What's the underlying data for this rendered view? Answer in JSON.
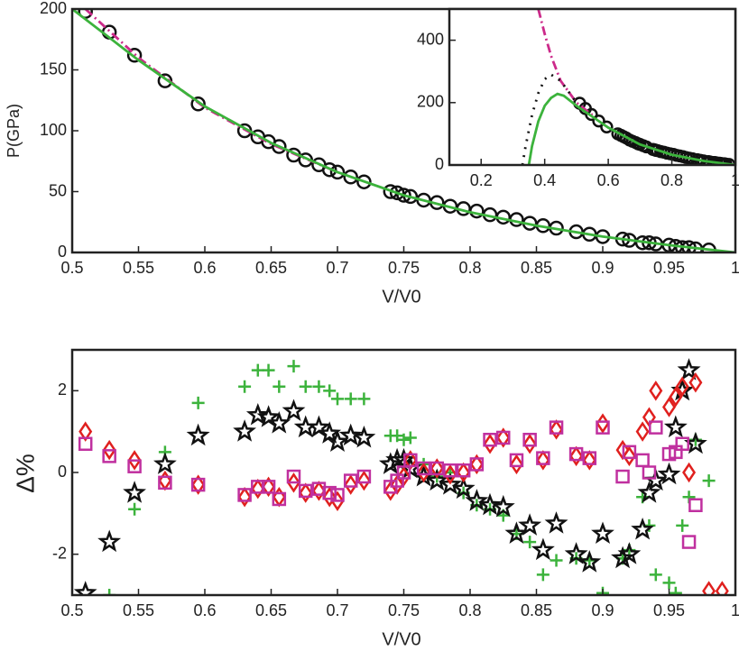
{
  "chart_data": [
    {
      "type": "line",
      "xlabel": "V/V0",
      "ylabel": "P(GPa)",
      "xlim": [
        0.5,
        1
      ],
      "ylim": [
        0,
        200
      ],
      "xticks": [
        0.5,
        0.55,
        0.6,
        0.65,
        0.7,
        0.75,
        0.8,
        0.85,
        0.9,
        0.95,
        1
      ],
      "yticks": [
        0,
        50,
        100,
        150,
        200
      ],
      "series": [
        {
          "color": "#111111",
          "marker": "o",
          "line": "none",
          "x": [
            0.51,
            0.528,
            0.547,
            0.57,
            0.595,
            0.63,
            0.64,
            0.648,
            0.656,
            0.667,
            0.676,
            0.686,
            0.694,
            0.7,
            0.71,
            0.72,
            0.74,
            0.745,
            0.75,
            0.755,
            0.765,
            0.775,
            0.785,
            0.795,
            0.805,
            0.815,
            0.825,
            0.835,
            0.845,
            0.855,
            0.865,
            0.88,
            0.89,
            0.9,
            0.915,
            0.92,
            0.93,
            0.935,
            0.94,
            0.95,
            0.955,
            0.96,
            0.965,
            0.97,
            0.98
          ],
          "values": [
            198,
            181,
            162,
            141,
            122,
            100,
            95,
            91,
            87,
            80,
            76,
            72,
            68,
            66,
            62,
            58,
            50,
            49,
            47,
            46,
            43,
            41,
            38,
            36,
            34,
            31,
            29,
            27,
            24,
            22,
            20,
            17,
            15,
            13,
            11,
            10,
            8,
            8,
            7,
            6,
            5,
            4,
            4,
            3,
            2
          ]
        },
        {
          "color": "#cc2a8a",
          "marker": "none",
          "line": "dashdot",
          "x": [
            0.51,
            0.55,
            0.6,
            0.65,
            0.7
          ],
          "values": [
            200,
            160,
            119,
            89,
            66
          ]
        },
        {
          "color": "#3cb33c",
          "marker": "none",
          "line": "solid",
          "x": [
            0.5,
            0.55,
            0.6,
            0.65,
            0.7,
            0.75,
            0.8,
            0.85,
            0.9,
            0.95,
            1
          ],
          "values": [
            200,
            158,
            120,
            90,
            66,
            47,
            33,
            22,
            13,
            6,
            0
          ]
        }
      ]
    },
    {
      "type": "line",
      "xlim": [
        0.1,
        1
      ],
      "ylim": [
        0,
        500
      ],
      "xticks": [
        0.2,
        0.4,
        0.6,
        0.8,
        1
      ],
      "yticks": [
        0,
        200,
        400
      ],
      "series": [
        {
          "color": "#cc2a8a",
          "marker": "none",
          "line": "dashdot",
          "x": [
            0.38,
            0.4,
            0.42,
            0.45,
            0.5,
            0.55
          ],
          "values": [
            500,
            420,
            350,
            270,
            200,
            160
          ]
        },
        {
          "color": "#111111",
          "marker": "none",
          "line": "dotted",
          "x": [
            0.33,
            0.34,
            0.36,
            0.38,
            0.4,
            0.42,
            0.45,
            0.5
          ],
          "values": [
            0,
            60,
            160,
            230,
            275,
            290,
            270,
            200
          ]
        },
        {
          "color": "#3cb33c",
          "marker": "none",
          "line": "solid",
          "x": [
            0.35,
            0.36,
            0.38,
            0.4,
            0.42,
            0.44,
            0.46,
            0.5,
            0.55,
            0.6,
            0.7,
            0.8,
            0.9,
            1
          ],
          "values": [
            0,
            60,
            140,
            190,
            215,
            228,
            222,
            190,
            155,
            120,
            66,
            33,
            13,
            0
          ]
        }
      ]
    },
    {
      "type": "scatter",
      "xlabel": "V/V0",
      "ylabel": "Δ%",
      "xlim": [
        0.5,
        1
      ],
      "ylim": [
        -3,
        3
      ],
      "xticks": [
        0.5,
        0.55,
        0.6,
        0.65,
        0.7,
        0.75,
        0.8,
        0.85,
        0.9,
        0.95,
        1
      ],
      "yticks": [
        -2,
        0,
        2
      ],
      "x": [
        0.51,
        0.528,
        0.547,
        0.57,
        0.595,
        0.63,
        0.64,
        0.648,
        0.656,
        0.667,
        0.676,
        0.686,
        0.694,
        0.7,
        0.71,
        0.72,
        0.74,
        0.745,
        0.75,
        0.755,
        0.765,
        0.775,
        0.785,
        0.795,
        0.805,
        0.815,
        0.825,
        0.835,
        0.845,
        0.855,
        0.865,
        0.88,
        0.89,
        0.9,
        0.915,
        0.92,
        0.93,
        0.935,
        0.94,
        0.95,
        0.955,
        0.96,
        0.965,
        0.97,
        0.98,
        0.99
      ],
      "series": [
        {
          "color": "#3cb33c",
          "marker": "+",
          "values": [
            null,
            -3.0,
            -0.9,
            0.5,
            1.7,
            2.1,
            2.5,
            2.5,
            2.1,
            2.6,
            2.1,
            2.1,
            2.0,
            1.8,
            1.8,
            1.8,
            0.9,
            0.9,
            0.8,
            0.85,
            0.2,
            -0.1,
            0.0,
            -0.5,
            -0.8,
            -0.9,
            -1.05,
            -1.5,
            -1.7,
            -2.5,
            -2.15,
            -2.1,
            -2.15,
            -2.95,
            -2.1,
            -1.9,
            -0.6,
            -1.3,
            -2.5,
            -2.7,
            -2.95,
            -1.3,
            -0.6,
            0.8,
            -0.2,
            null
          ]
        },
        {
          "color": "#111111",
          "marker": "*",
          "values": [
            -2.95,
            -1.7,
            -0.5,
            0.2,
            0.9,
            1.0,
            1.4,
            1.35,
            1.2,
            1.5,
            1.1,
            1.1,
            0.95,
            0.75,
            0.9,
            0.85,
            0.2,
            0.3,
            0.3,
            0.1,
            -0.1,
            -0.2,
            -0.3,
            -0.4,
            -0.7,
            -0.8,
            -0.85,
            -1.5,
            -1.3,
            -1.9,
            -1.25,
            -2.0,
            -2.2,
            -1.5,
            -2.1,
            -2.0,
            -1.4,
            -0.5,
            -0.2,
            -0.05,
            1.1,
            2.0,
            2.5,
            0.7,
            null,
            null
          ]
        },
        {
          "color": "#e0201e",
          "marker": "d",
          "values": [
            1.0,
            0.55,
            0.3,
            -0.2,
            -0.3,
            -0.6,
            -0.4,
            -0.35,
            -0.6,
            -0.25,
            -0.5,
            -0.45,
            -0.6,
            -0.7,
            -0.3,
            -0.2,
            -0.45,
            -0.3,
            -0.1,
            0.3,
            0.0,
            0.1,
            -0.05,
            0.0,
            0.2,
            0.7,
            0.85,
            0.2,
            0.7,
            0.3,
            1.05,
            0.4,
            0.3,
            1.2,
            0.55,
            0.4,
            1.0,
            1.35,
            2.0,
            1.6,
            1.85,
            2.1,
            0.0,
            2.2,
            -2.9,
            -2.9
          ]
        },
        {
          "color": "#c0309f",
          "marker": "s",
          "values": [
            0.7,
            0.4,
            0.15,
            -0.25,
            -0.3,
            -0.55,
            -0.35,
            -0.35,
            -0.65,
            -0.1,
            -0.45,
            -0.4,
            -0.5,
            -0.55,
            -0.2,
            -0.1,
            -0.35,
            -0.2,
            0.0,
            0.3,
            0.1,
            0.1,
            0.05,
            0.05,
            0.2,
            0.8,
            0.85,
            0.3,
            0.8,
            0.35,
            1.1,
            0.45,
            0.35,
            1.1,
            -0.1,
            0.5,
            0.3,
            0.0,
            1.1,
            0.45,
            0.5,
            0.7,
            -1.7,
            -0.8,
            null,
            null
          ]
        }
      ]
    }
  ]
}
